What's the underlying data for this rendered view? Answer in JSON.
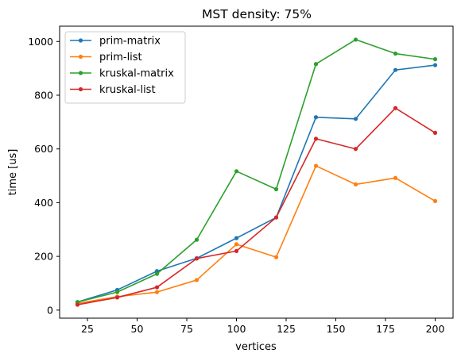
{
  "chart_data": {
    "type": "line",
    "title": "MST density: 75%",
    "xlabel": "vertices",
    "ylabel": "time [us]",
    "xlim": [
      11,
      209
    ],
    "ylim": [
      -30,
      1057
    ],
    "xticks": [
      25,
      50,
      75,
      100,
      125,
      150,
      175,
      200
    ],
    "yticks": [
      0,
      200,
      400,
      600,
      800,
      1000
    ],
    "x": [
      20,
      40,
      60,
      80,
      100,
      120,
      140,
      160,
      180,
      200
    ],
    "legend_position": "top-left",
    "grid": false,
    "series": [
      {
        "name": "prim-matrix",
        "color": "#1f77b4",
        "values": [
          30,
          75,
          145,
          193,
          268,
          345,
          718,
          712,
          894,
          912
        ]
      },
      {
        "name": "prim-list",
        "color": "#ff7f0e",
        "values": [
          25,
          50,
          67,
          112,
          245,
          197,
          537,
          468,
          492,
          406
        ]
      },
      {
        "name": "kruskal-matrix",
        "color": "#2ca02c",
        "values": [
          30,
          67,
          135,
          262,
          517,
          450,
          916,
          1007,
          955,
          934
        ]
      },
      {
        "name": "kruskal-list",
        "color": "#d62728",
        "values": [
          20,
          47,
          85,
          192,
          220,
          345,
          638,
          600,
          752,
          660
        ]
      }
    ]
  }
}
